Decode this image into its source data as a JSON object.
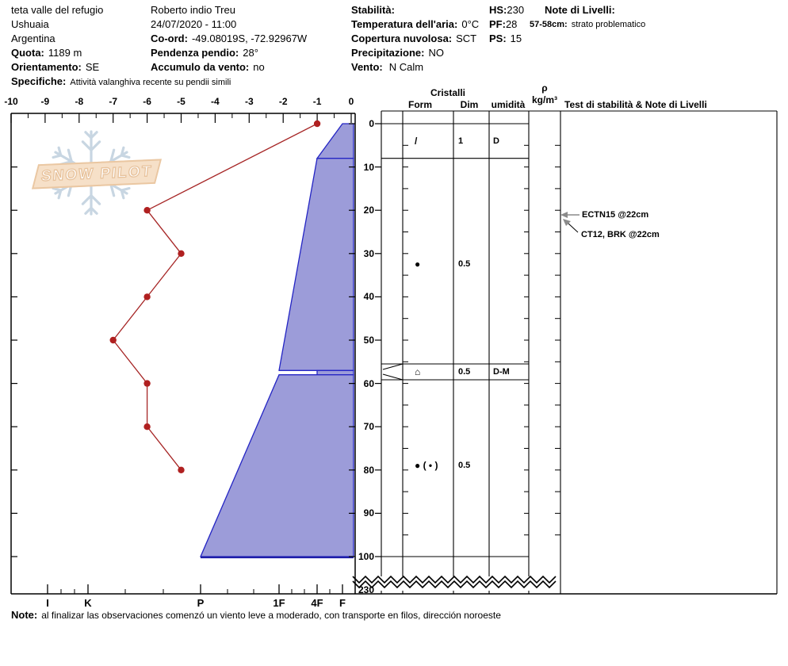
{
  "header": {
    "left": {
      "site": "teta valle del refugio",
      "region": "Ushuaia",
      "country": "Argentina",
      "quota_label": "Quota:",
      "quota_value": "1189 m",
      "orientamento_label": "Orientamento:",
      "orientamento_value": "SE",
      "specifiche_label": "Specifiche:",
      "specifiche_value": "Attività valanghiva recente su pendii simili"
    },
    "middle": {
      "observer": "Roberto indio Treu",
      "datetime": "24/07/2020 - 11:00",
      "coord_label": "Co-ord:",
      "coord_value": "-49.08019S, -72.92967W",
      "pendenza_label": "Pendenza pendio:",
      "pendenza_value": "28°",
      "accumulo_label": "Accumulo da vento:",
      "accumulo_value": "no"
    },
    "right": {
      "stabilita_label": "Stabilità:",
      "stabilita_value": "",
      "temperatura_label": "Temperatura dell'aria:",
      "temperatura_value": "0°C",
      "copertura_label": "Copertura nuvolosa:",
      "copertura_value": "SCT",
      "precipitazione_label": "Precipitazione:",
      "precipitazione_value": "NO",
      "vento_label": "Vento:",
      "vento_value": "N Calm"
    },
    "totals": {
      "hs_label": "HS:",
      "hs_value": "230",
      "pf_label": "PF:",
      "pf_value": "28",
      "ps_label": "PS:",
      "ps_value": "15"
    },
    "level_notes": {
      "title": "Note di Livelli:",
      "line_label": "57-58cm:",
      "line_value": "strato problematico"
    }
  },
  "logo": {
    "text": "SNOW PILOT"
  },
  "table_headers": {
    "cristalli": "Cristalli",
    "form": "Form",
    "dim": "Dim",
    "umidita": "umidità",
    "rho": "ρ",
    "rho_units": "kg/m³",
    "tests": "Test di stabilità & Note di Livelli"
  },
  "chart_data": {
    "type": "snow-profile",
    "temperature": {
      "type": "line",
      "unit": "°C",
      "color": "#a62525",
      "axis_ticks": [
        -10,
        -9,
        -8,
        -7,
        -6,
        -5,
        -4,
        -3,
        -2,
        -1,
        0
      ],
      "points": [
        {
          "depth_cm": 0,
          "temp_c": -1
        },
        {
          "depth_cm": 20,
          "temp_c": -6
        },
        {
          "depth_cm": 30,
          "temp_c": -5
        },
        {
          "depth_cm": 40,
          "temp_c": -6
        },
        {
          "depth_cm": 50,
          "temp_c": -7
        },
        {
          "depth_cm": 60,
          "temp_c": -6
        },
        {
          "depth_cm": 70,
          "temp_c": -6
        },
        {
          "depth_cm": 80,
          "temp_c": -5
        }
      ]
    },
    "depth_axis": {
      "unit": "cm",
      "ticks": [
        0,
        10,
        20,
        30,
        40,
        50,
        60,
        70,
        80,
        90,
        100
      ],
      "break_label": "230",
      "total_hs_cm": 230
    },
    "hardness_axis": {
      "categories": [
        "I",
        "K",
        "P",
        "1F",
        "4F",
        "F"
      ]
    },
    "layers": [
      {
        "from_cm": 0,
        "to_cm": 8,
        "hardness_top": "F",
        "hardness_bottom": "4F",
        "form": "/",
        "dim_mm": "1",
        "moisture": "D"
      },
      {
        "from_cm": 8,
        "to_cm": 57,
        "hardness_top": "4F",
        "hardness_bottom": "1F",
        "form": "●",
        "dim_mm": "0.5",
        "moisture": ""
      },
      {
        "from_cm": 57,
        "to_cm": 58,
        "hardness_top": "4F",
        "hardness_bottom": "4F",
        "form": "⌂",
        "dim_mm": "0.5",
        "moisture": "D-M",
        "flagged": true
      },
      {
        "from_cm": 58,
        "to_cm": 100,
        "hardness_top": "1F",
        "hardness_bottom": "P",
        "form": "● ( • )",
        "dim_mm": "0.5",
        "moisture": ""
      }
    ],
    "fill_color": "#9c9cd9",
    "line_color": "#2425c4"
  },
  "tests": [
    {
      "label": "ECTN15 @22cm",
      "depth_cm": 22
    },
    {
      "label": "CT12, BRK @22cm",
      "depth_cm": 22
    }
  ],
  "note": {
    "label": "Note:",
    "text": "al finalizar las observaciones comenzó un viento leve  a moderado, con transporte en filos, dirección noroeste"
  }
}
